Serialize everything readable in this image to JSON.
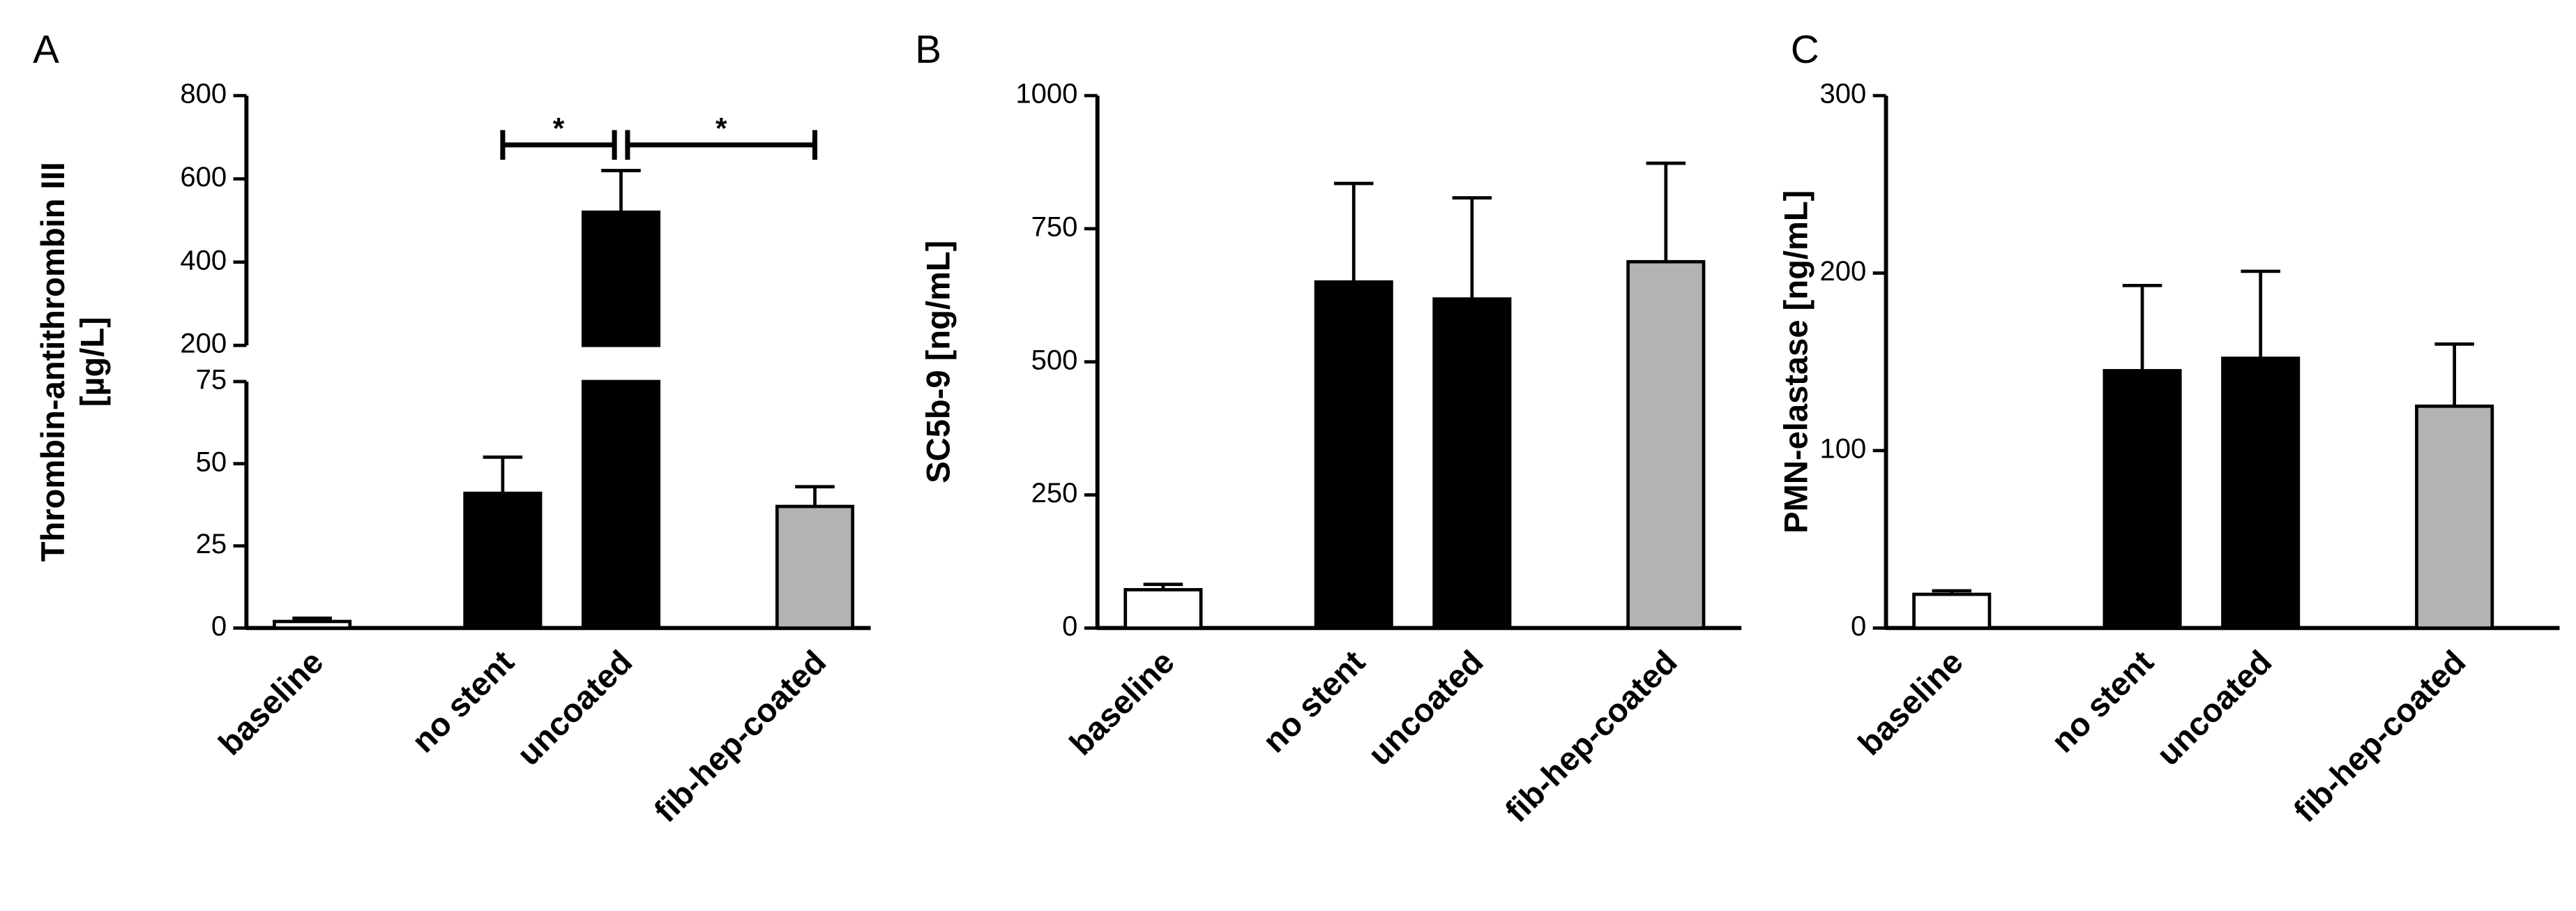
{
  "chart_data": [
    {
      "type": "bar",
      "panel_label": "A",
      "ylabel": [
        "Thrombin-antithrombin III",
        "[µg/L]"
      ],
      "categories": [
        "baseline",
        "no stent",
        "uncoated",
        "fib-hep-coated"
      ],
      "values": [
        2,
        41,
        520,
        37
      ],
      "errors": [
        1,
        11,
        100,
        6
      ],
      "colors": [
        "#ffffff",
        "#000000",
        "#000000",
        "#b3b3b3"
      ],
      "ylim": [
        0,
        800
      ],
      "ybreak": [
        75,
        200
      ],
      "yticks": [
        0,
        25,
        50,
        75,
        200,
        400,
        600,
        800
      ],
      "annotations": [
        "*",
        "*"
      ]
    },
    {
      "type": "bar",
      "panel_label": "B",
      "ylabel": [
        "SC5b-9 [ng/mL]"
      ],
      "categories": [
        "baseline",
        "no stent",
        "uncoated",
        "fib-hep-coated"
      ],
      "values": [
        72,
        650,
        618,
        688
      ],
      "errors": [
        10,
        185,
        190,
        185
      ],
      "colors": [
        "#ffffff",
        "#000000",
        "#000000",
        "#b3b3b3"
      ],
      "ylim": [
        0,
        1000
      ],
      "yticks": [
        0,
        250,
        500,
        750,
        1000
      ]
    },
    {
      "type": "bar",
      "panel_label": "C",
      "ylabel": [
        "PMN-elastase [ng/mL]"
      ],
      "categories": [
        "baseline",
        "no stent",
        "uncoated",
        "fib-hep-coated"
      ],
      "values": [
        19,
        145,
        152,
        125
      ],
      "errors": [
        2,
        48,
        49,
        35
      ],
      "colors": [
        "#ffffff",
        "#000000",
        "#000000",
        "#b3b3b3"
      ],
      "ylim": [
        0,
        300
      ],
      "yticks": [
        0,
        100,
        200,
        300
      ]
    }
  ]
}
